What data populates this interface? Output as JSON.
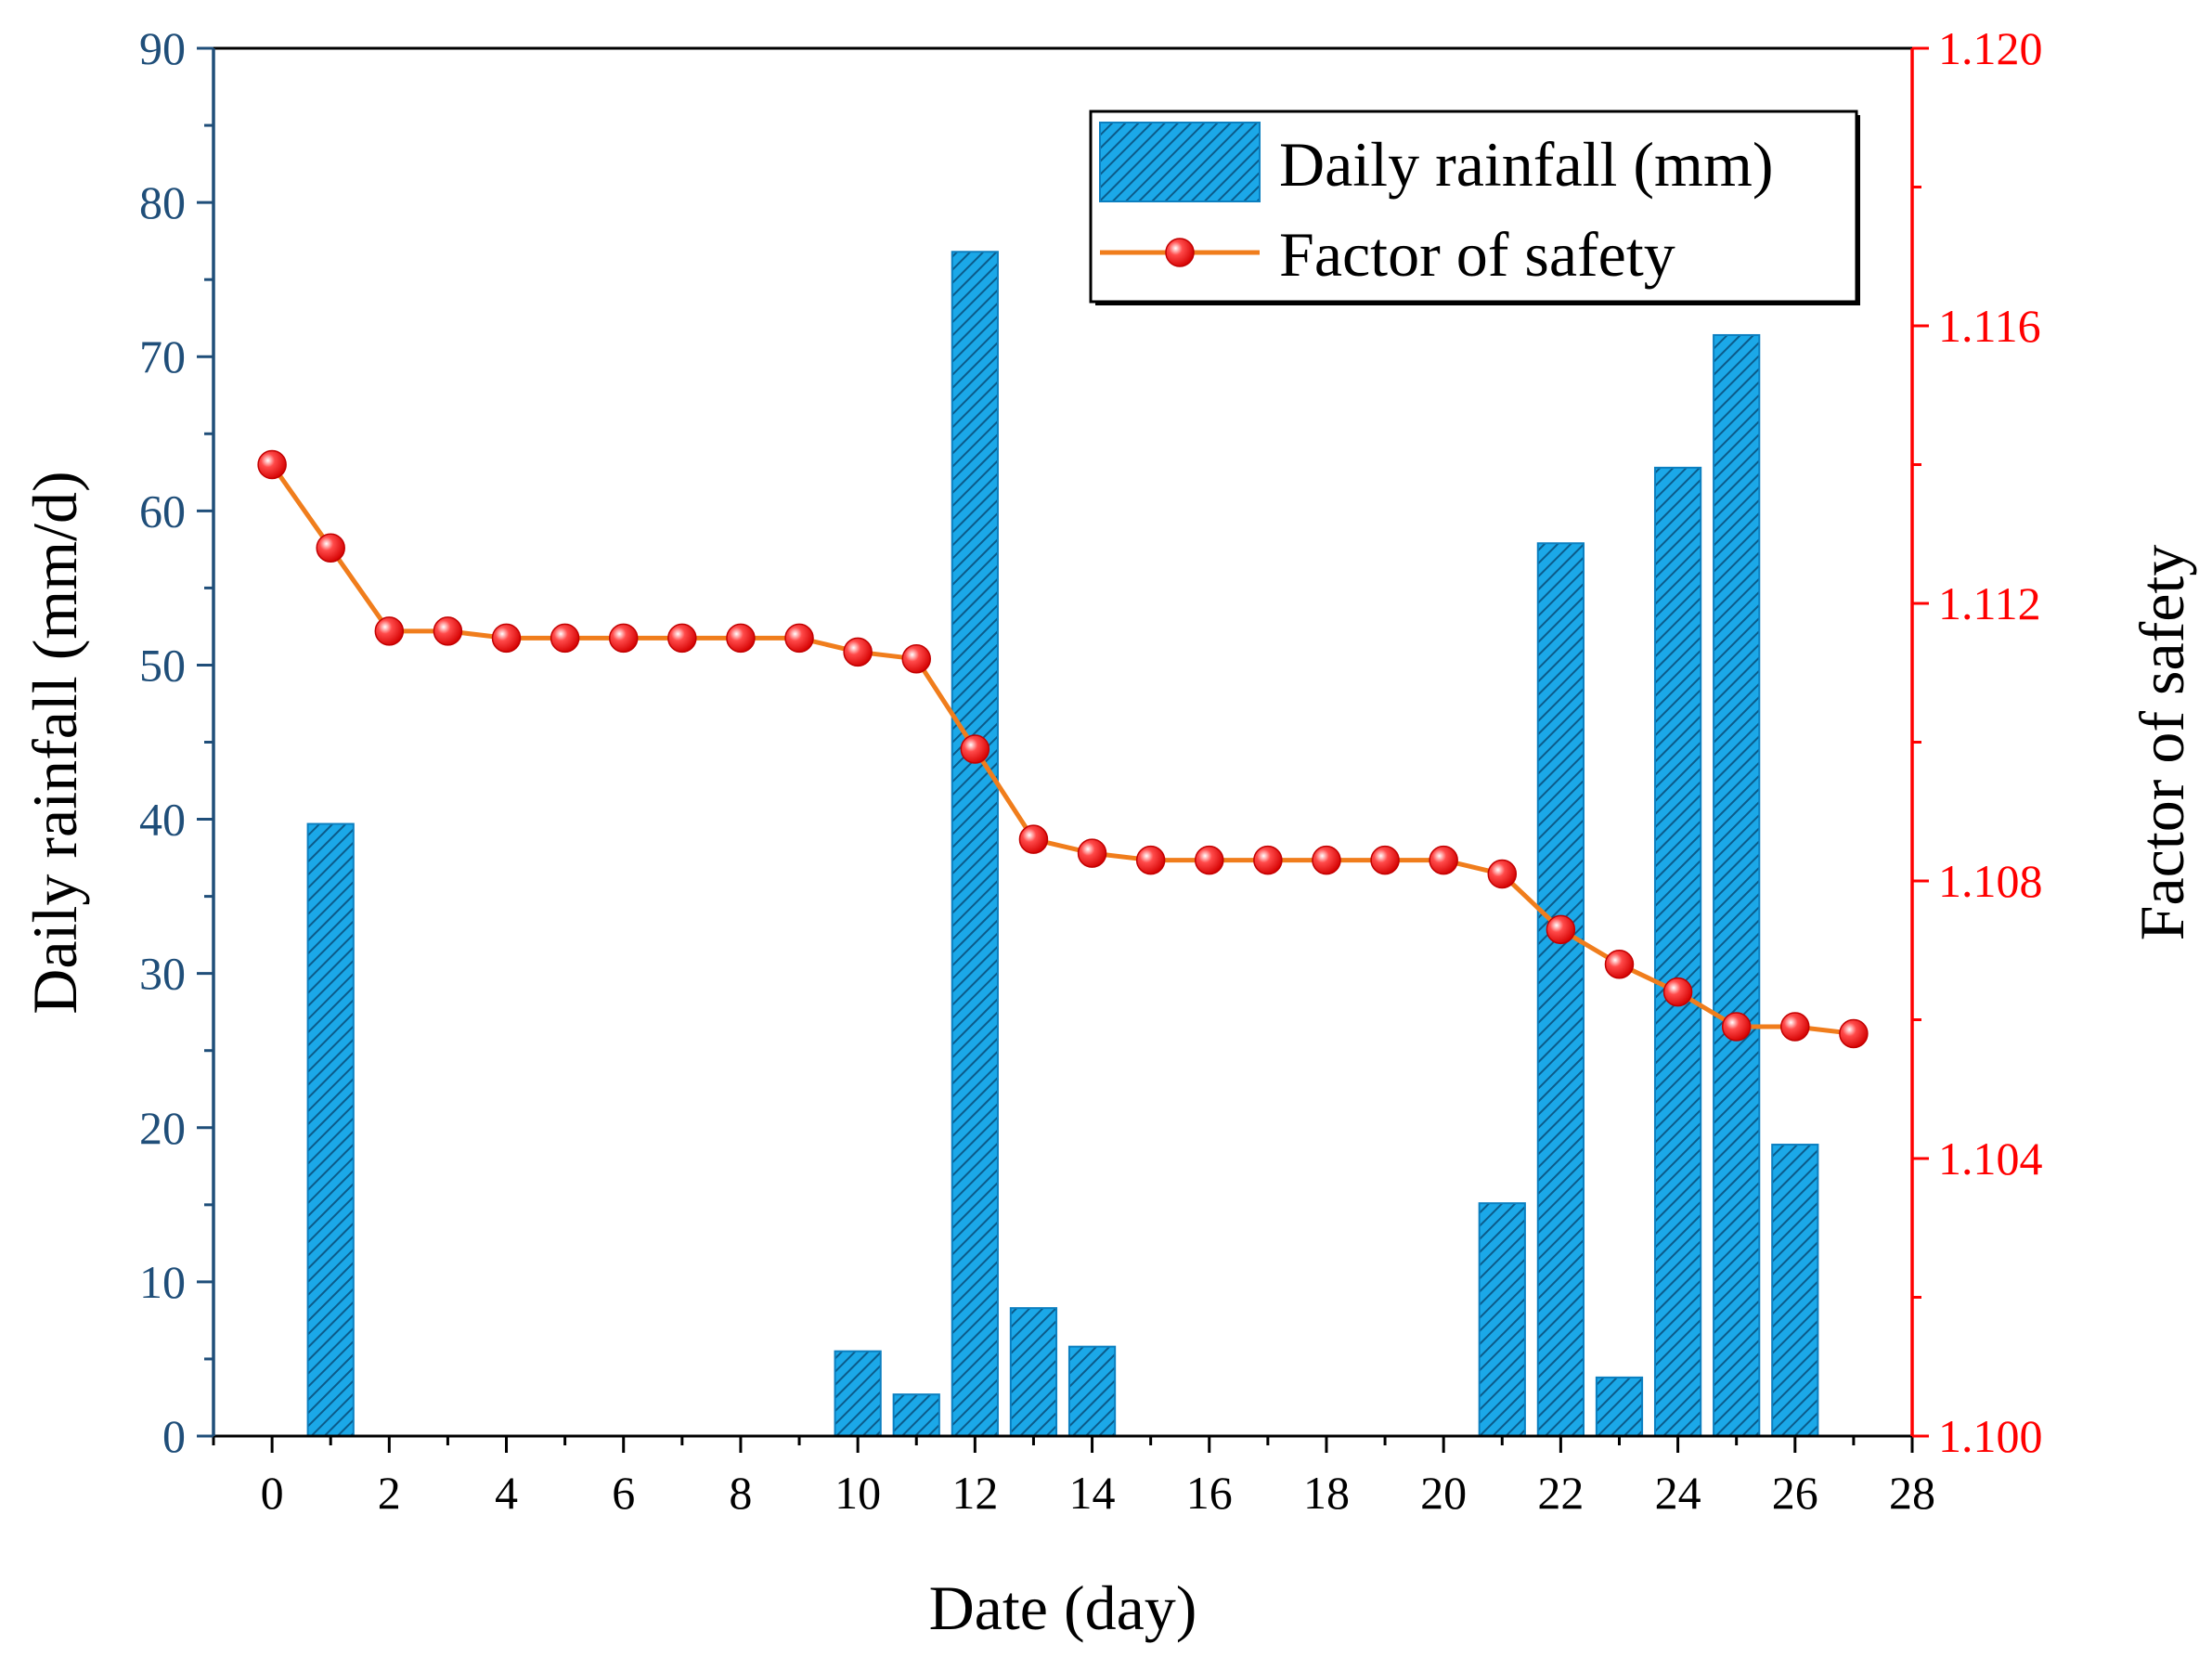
{
  "chart_data": {
    "type": "bar+line",
    "title": "",
    "xlabel": "Date (day)",
    "ylabel_left": "Daily rainfall (mm/d)",
    "ylabel_right": "Factor of safety",
    "xlim": [
      -1,
      28
    ],
    "ylim_left": [
      0,
      90
    ],
    "ylim_right": [
      1.1,
      1.12
    ],
    "x_ticks": [
      "0",
      "2",
      "4",
      "6",
      "8",
      "10",
      "12",
      "14",
      "16",
      "18",
      "20",
      "22",
      "24",
      "26",
      "28"
    ],
    "y_left_ticks": [
      "0",
      "10",
      "20",
      "30",
      "40",
      "50",
      "60",
      "70",
      "80",
      "90"
    ],
    "y_right_ticks": [
      "1.100",
      "1.104",
      "1.108",
      "1.112",
      "1.116",
      "1.120"
    ],
    "legend": [
      "Daily rainfall (mm)",
      "Factor of safety"
    ],
    "legend_position": "top-right",
    "colors": {
      "bar_fill": "#1ba8e8",
      "bar_hatch": "#0b5b8a",
      "line": "#f07d1c",
      "marker": "#e8101a",
      "left_axis": "#1f4e79",
      "right_axis": "#ff0000"
    },
    "series": [
      {
        "name": "Daily rainfall (mm)",
        "type": "bar",
        "x": [
          1,
          10,
          11,
          12,
          13,
          14,
          21,
          22,
          23,
          24,
          25,
          26
        ],
        "values": [
          39.7,
          5.5,
          2.7,
          76.8,
          8.3,
          5.8,
          15.1,
          57.9,
          3.8,
          62.8,
          71.4,
          18.9
        ]
      },
      {
        "name": "Factor of safety",
        "type": "line",
        "x": [
          0,
          1,
          2,
          3,
          4,
          5,
          6,
          7,
          8,
          9,
          10,
          11,
          12,
          13,
          14,
          15,
          16,
          17,
          18,
          19,
          20,
          21,
          22,
          23,
          24,
          25,
          26,
          27
        ],
        "values": [
          1.114,
          1.1128,
          1.1116,
          1.1116,
          1.1115,
          1.1115,
          1.1115,
          1.1115,
          1.1115,
          1.1115,
          1.1113,
          1.1112,
          1.1099,
          1.1086,
          1.1084,
          1.1083,
          1.1083,
          1.1083,
          1.1083,
          1.1083,
          1.1083,
          1.1081,
          1.1073,
          1.1068,
          1.1064,
          1.1059,
          1.1059,
          1.1058
        ]
      }
    ]
  }
}
